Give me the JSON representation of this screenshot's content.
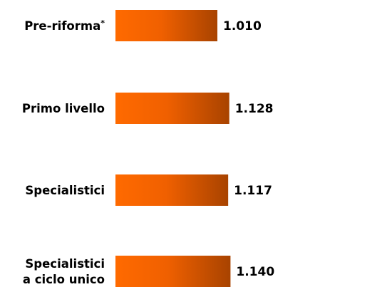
{
  "chart_data": {
    "type": "bar",
    "orientation": "horizontal",
    "categories": [
      [
        "Pre-riforma*"
      ],
      [
        "Primo livello"
      ],
      [
        "Specialistici"
      ],
      [
        "Specialistici",
        "a ciclo unico"
      ]
    ],
    "values": [
      1010,
      1128,
      1117,
      1140
    ],
    "value_labels": [
      "1.010",
      "1.128",
      "1.117",
      "1.140"
    ],
    "title": "",
    "xlabel": "",
    "ylabel": "",
    "grid": false,
    "legend": "none",
    "colors": {
      "bar_start": "#ff6a00",
      "bar_mid": "#f06000",
      "bar_end": "#a84300"
    }
  }
}
